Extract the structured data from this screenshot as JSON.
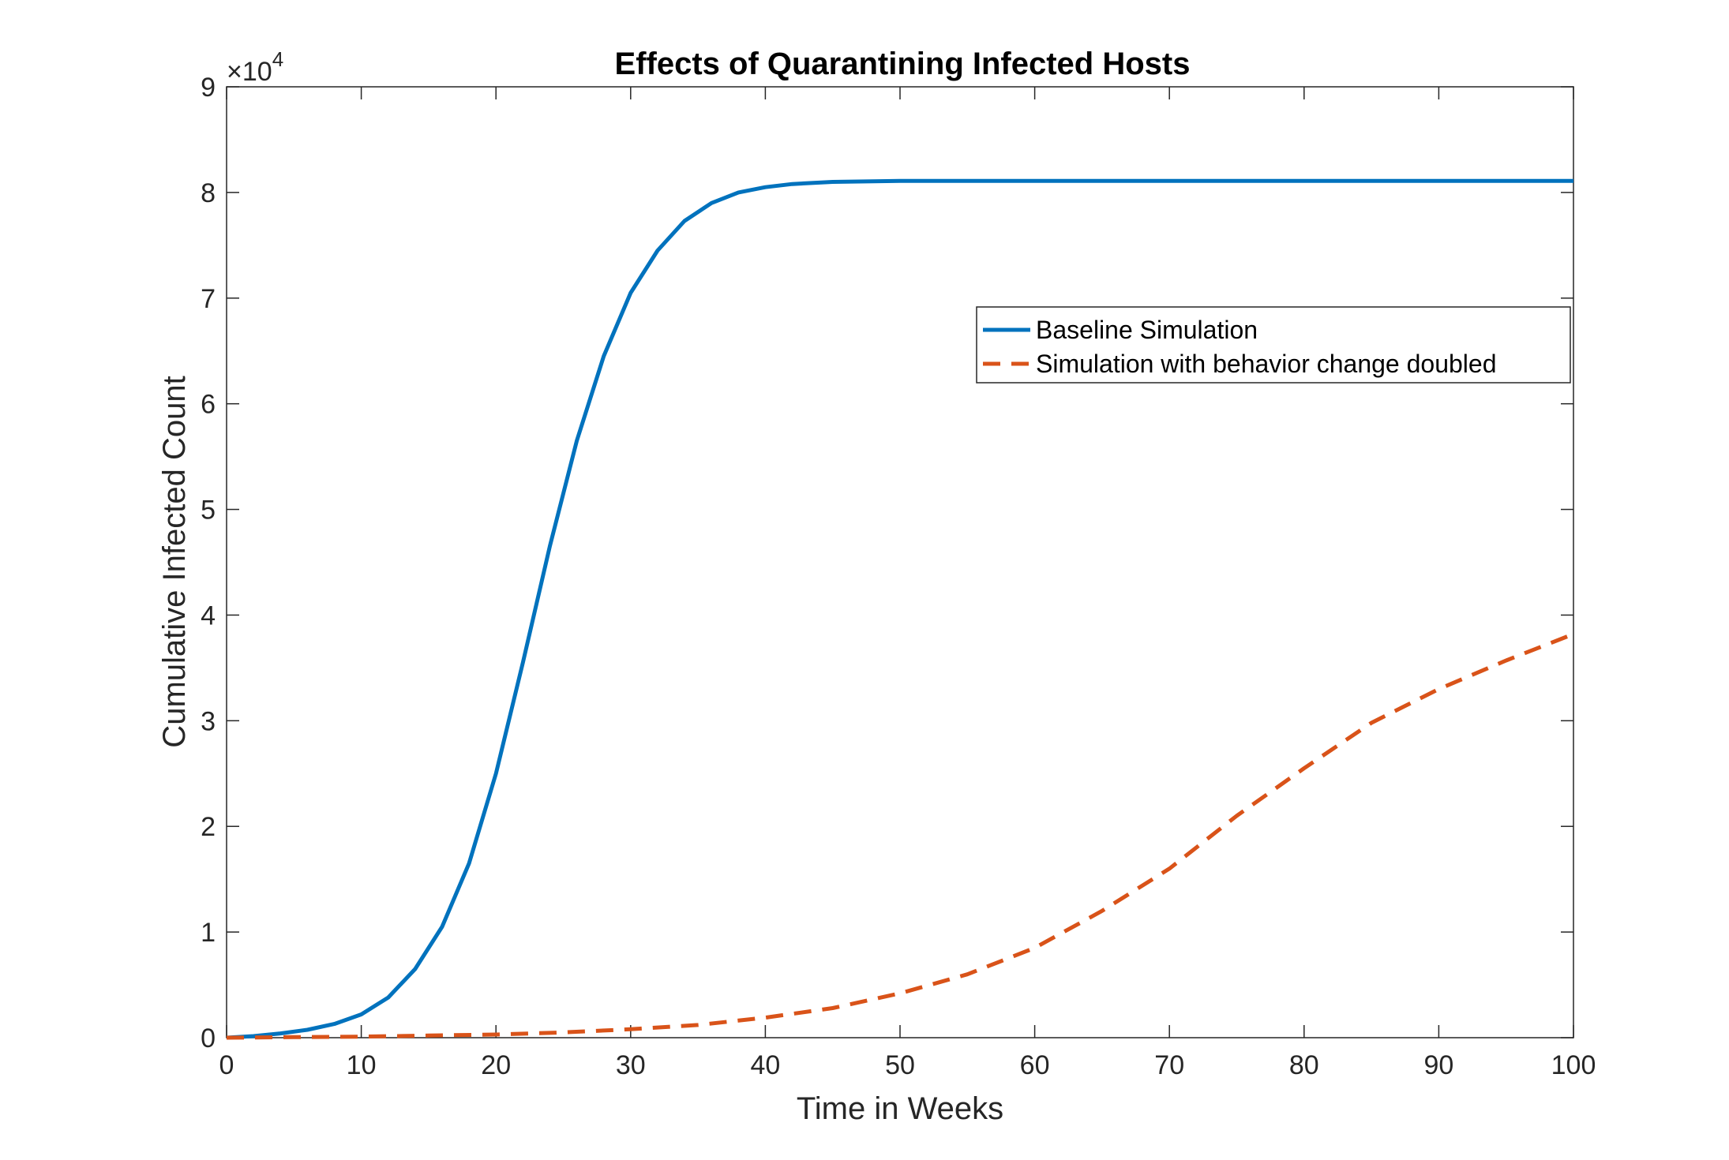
{
  "chart_data": {
    "type": "line",
    "title": "Effects of Quarantining Infected Hosts",
    "xlabel": "Time in Weeks",
    "ylabel": "Cumulative Infected Count",
    "xlim": [
      0,
      100
    ],
    "ylim": [
      0,
      90000
    ],
    "x_ticks": [
      0,
      10,
      20,
      30,
      40,
      50,
      60,
      70,
      80,
      90,
      100
    ],
    "y_ticks": [
      0,
      10000,
      20000,
      30000,
      40000,
      50000,
      60000,
      70000,
      80000,
      90000
    ],
    "y_tick_labels": [
      "0",
      "1",
      "2",
      "3",
      "4",
      "5",
      "6",
      "7",
      "8",
      "9"
    ],
    "y_exponent": {
      "base": "×10",
      "power": "4"
    },
    "grid": false,
    "legend_position": "upper-right",
    "series": [
      {
        "name": "Baseline Simulation",
        "color": "#0072BD",
        "style": "solid",
        "x": [
          0,
          2,
          4,
          6,
          8,
          10,
          12,
          14,
          16,
          18,
          20,
          22,
          24,
          26,
          28,
          30,
          32,
          34,
          36,
          38,
          40,
          42,
          45,
          50,
          55,
          60,
          70,
          80,
          90,
          100
        ],
        "y": [
          0,
          150,
          400,
          750,
          1300,
          2200,
          3800,
          6500,
          10500,
          16500,
          25000,
          35500,
          46500,
          56500,
          64500,
          70500,
          74500,
          77300,
          79000,
          80000,
          80500,
          80800,
          81000,
          81100,
          81100,
          81100,
          81100,
          81100,
          81100,
          81100
        ]
      },
      {
        "name": "Simulation with behavior change doubled",
        "color": "#D95319",
        "style": "dashed",
        "x": [
          0,
          5,
          10,
          15,
          20,
          25,
          30,
          35,
          40,
          45,
          50,
          55,
          60,
          65,
          70,
          75,
          80,
          85,
          90,
          95,
          100
        ],
        "y": [
          0,
          50,
          100,
          200,
          300,
          500,
          800,
          1200,
          1900,
          2800,
          4200,
          6000,
          8500,
          12000,
          16000,
          21000,
          25500,
          29800,
          33000,
          35700,
          38200
        ]
      }
    ]
  }
}
